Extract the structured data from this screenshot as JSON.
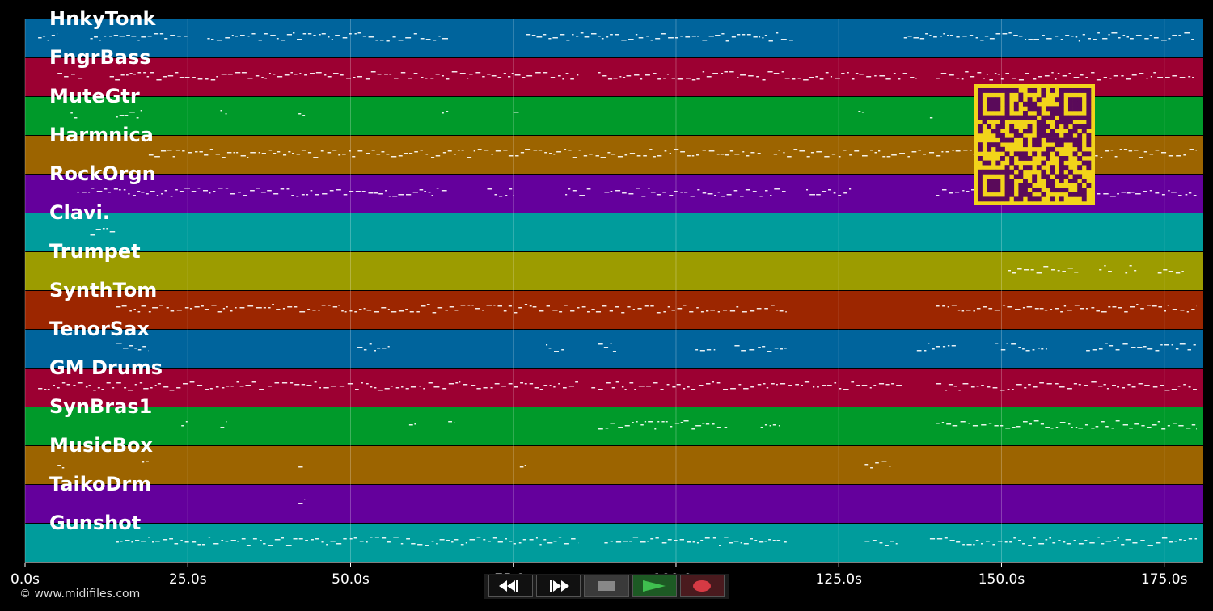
{
  "tracks": [
    {
      "name": "HnkyTonk",
      "color": "#00649c",
      "notes": [
        [
          2,
          5
        ],
        [
          10,
          25
        ],
        [
          28,
          65
        ],
        [
          77,
          118
        ],
        [
          135,
          180
        ]
      ]
    },
    {
      "name": "FngrBass",
      "color": "#9c0032",
      "notes": [
        [
          5,
          9
        ],
        [
          13,
          85
        ],
        [
          88,
          137
        ],
        [
          140,
          180
        ]
      ]
    },
    {
      "name": "MuteGtr",
      "color": "#009a2a",
      "notes": [
        [
          7,
          8
        ],
        [
          14,
          18
        ],
        [
          30,
          31
        ],
        [
          42,
          43
        ],
        [
          64,
          65
        ],
        [
          75,
          76
        ],
        [
          128,
          129
        ],
        [
          139,
          140
        ],
        [
          149,
          150
        ]
      ]
    },
    {
      "name": "Harmnica",
      "color": "#9c6400",
      "notes": [
        [
          19,
          113
        ],
        [
          115,
          180
        ]
      ]
    },
    {
      "name": "RockOrgn",
      "color": "#64009c",
      "notes": [
        [
          8,
          65
        ],
        [
          71,
          75
        ],
        [
          83,
          87
        ],
        [
          89,
          117
        ],
        [
          120,
          127
        ],
        [
          140,
          180
        ]
      ]
    },
    {
      "name": "Clavi.",
      "color": "#009c9c",
      "notes": [
        [
          10,
          14
        ]
      ]
    },
    {
      "name": "Trumpet",
      "color": "#9c9c00",
      "notes": [
        [
          151,
          162
        ],
        [
          165,
          167
        ],
        [
          169,
          171
        ],
        [
          174,
          178
        ]
      ]
    },
    {
      "name": "SynthTom",
      "color": "#9c2600",
      "notes": [
        [
          14,
          117
        ],
        [
          140,
          180
        ]
      ]
    },
    {
      "name": "TenorSax",
      "color": "#00649c",
      "notes": [
        [
          14,
          19
        ],
        [
          51,
          56
        ],
        [
          80,
          83
        ],
        [
          88,
          91
        ],
        [
          103,
          106
        ],
        [
          109,
          117
        ],
        [
          137,
          143
        ],
        [
          149,
          157
        ],
        [
          163,
          180
        ]
      ]
    },
    {
      "name": "GM Drums",
      "color": "#9c0032",
      "notes": [
        [
          2,
          85
        ],
        [
          87,
          135
        ],
        [
          140,
          180
        ]
      ]
    },
    {
      "name": "SynBras1",
      "color": "#009a2a",
      "notes": [
        [
          24,
          25
        ],
        [
          30,
          31
        ],
        [
          59,
          60
        ],
        [
          65,
          66
        ],
        [
          88,
          108
        ],
        [
          113,
          116
        ],
        [
          140,
          180
        ]
      ]
    },
    {
      "name": "MusicBox",
      "color": "#9c6400",
      "notes": [
        [
          5,
          6
        ],
        [
          18,
          19
        ],
        [
          42,
          43
        ],
        [
          76,
          77
        ],
        [
          129,
          133
        ]
      ]
    },
    {
      "name": "TaikoDrm",
      "color": "#64009c",
      "notes": [
        [
          42,
          43
        ]
      ]
    },
    {
      "name": "Gunshot",
      "color": "#009c9c",
      "notes": [
        [
          14,
          85
        ],
        [
          89,
          117
        ],
        [
          129,
          134
        ],
        [
          139,
          180
        ]
      ]
    }
  ],
  "axis": {
    "x_min": 0,
    "x_max": 181,
    "ticks": [
      {
        "value": 0,
        "label": "0.0s"
      },
      {
        "value": 25,
        "label": "25.0s"
      },
      {
        "value": 50,
        "label": "50.0s"
      },
      {
        "value": 75,
        "label": "75.0s"
      },
      {
        "value": 100,
        "label": "100.0s"
      },
      {
        "value": 125,
        "label": "125.0s"
      },
      {
        "value": 150,
        "label": "150.0s"
      },
      {
        "value": 175,
        "label": "175.0s"
      }
    ]
  },
  "copyright": "© www.midifiles.com",
  "transport": {
    "rewind_icon": "rewind-icon",
    "forward_icon": "fast-forward-icon",
    "stop_icon": "stop-icon",
    "play_icon": "play-icon",
    "record_icon": "record-icon",
    "colors": {
      "play": "#2e9a3a",
      "record": "#c0303a",
      "stop": "#777777"
    }
  },
  "qr_colors": {
    "fg": "#5a0a5a",
    "bg": "#f2d41a"
  }
}
